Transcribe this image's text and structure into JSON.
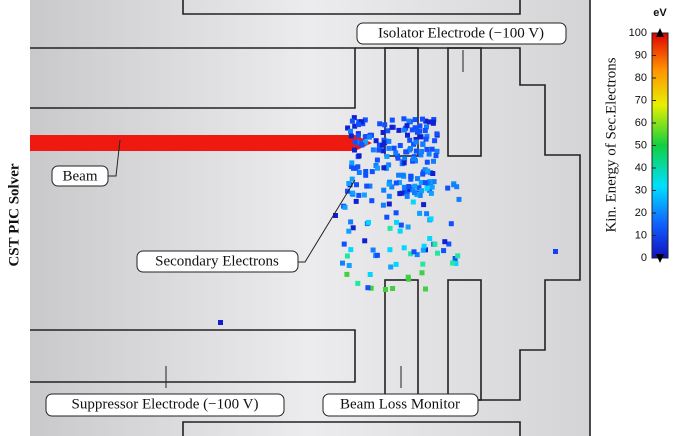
{
  "side_label": "CST PIC Solver",
  "labels": {
    "beam": "Beam",
    "secondary": "Secondary Electrons",
    "isolator": "Isolator Electrode (−100 V)",
    "suppressor": "Suppressor Electrode (−100 V)",
    "monitor": "Beam Loss Monitor"
  },
  "chart_data": {
    "type": "colorbar",
    "unit": "eV",
    "title": "Kin. Energy of Sec.Electrons",
    "ylim": [
      0,
      100
    ],
    "yticks": [
      0,
      10,
      20,
      30,
      40,
      50,
      60,
      70,
      80,
      90,
      100
    ]
  }
}
